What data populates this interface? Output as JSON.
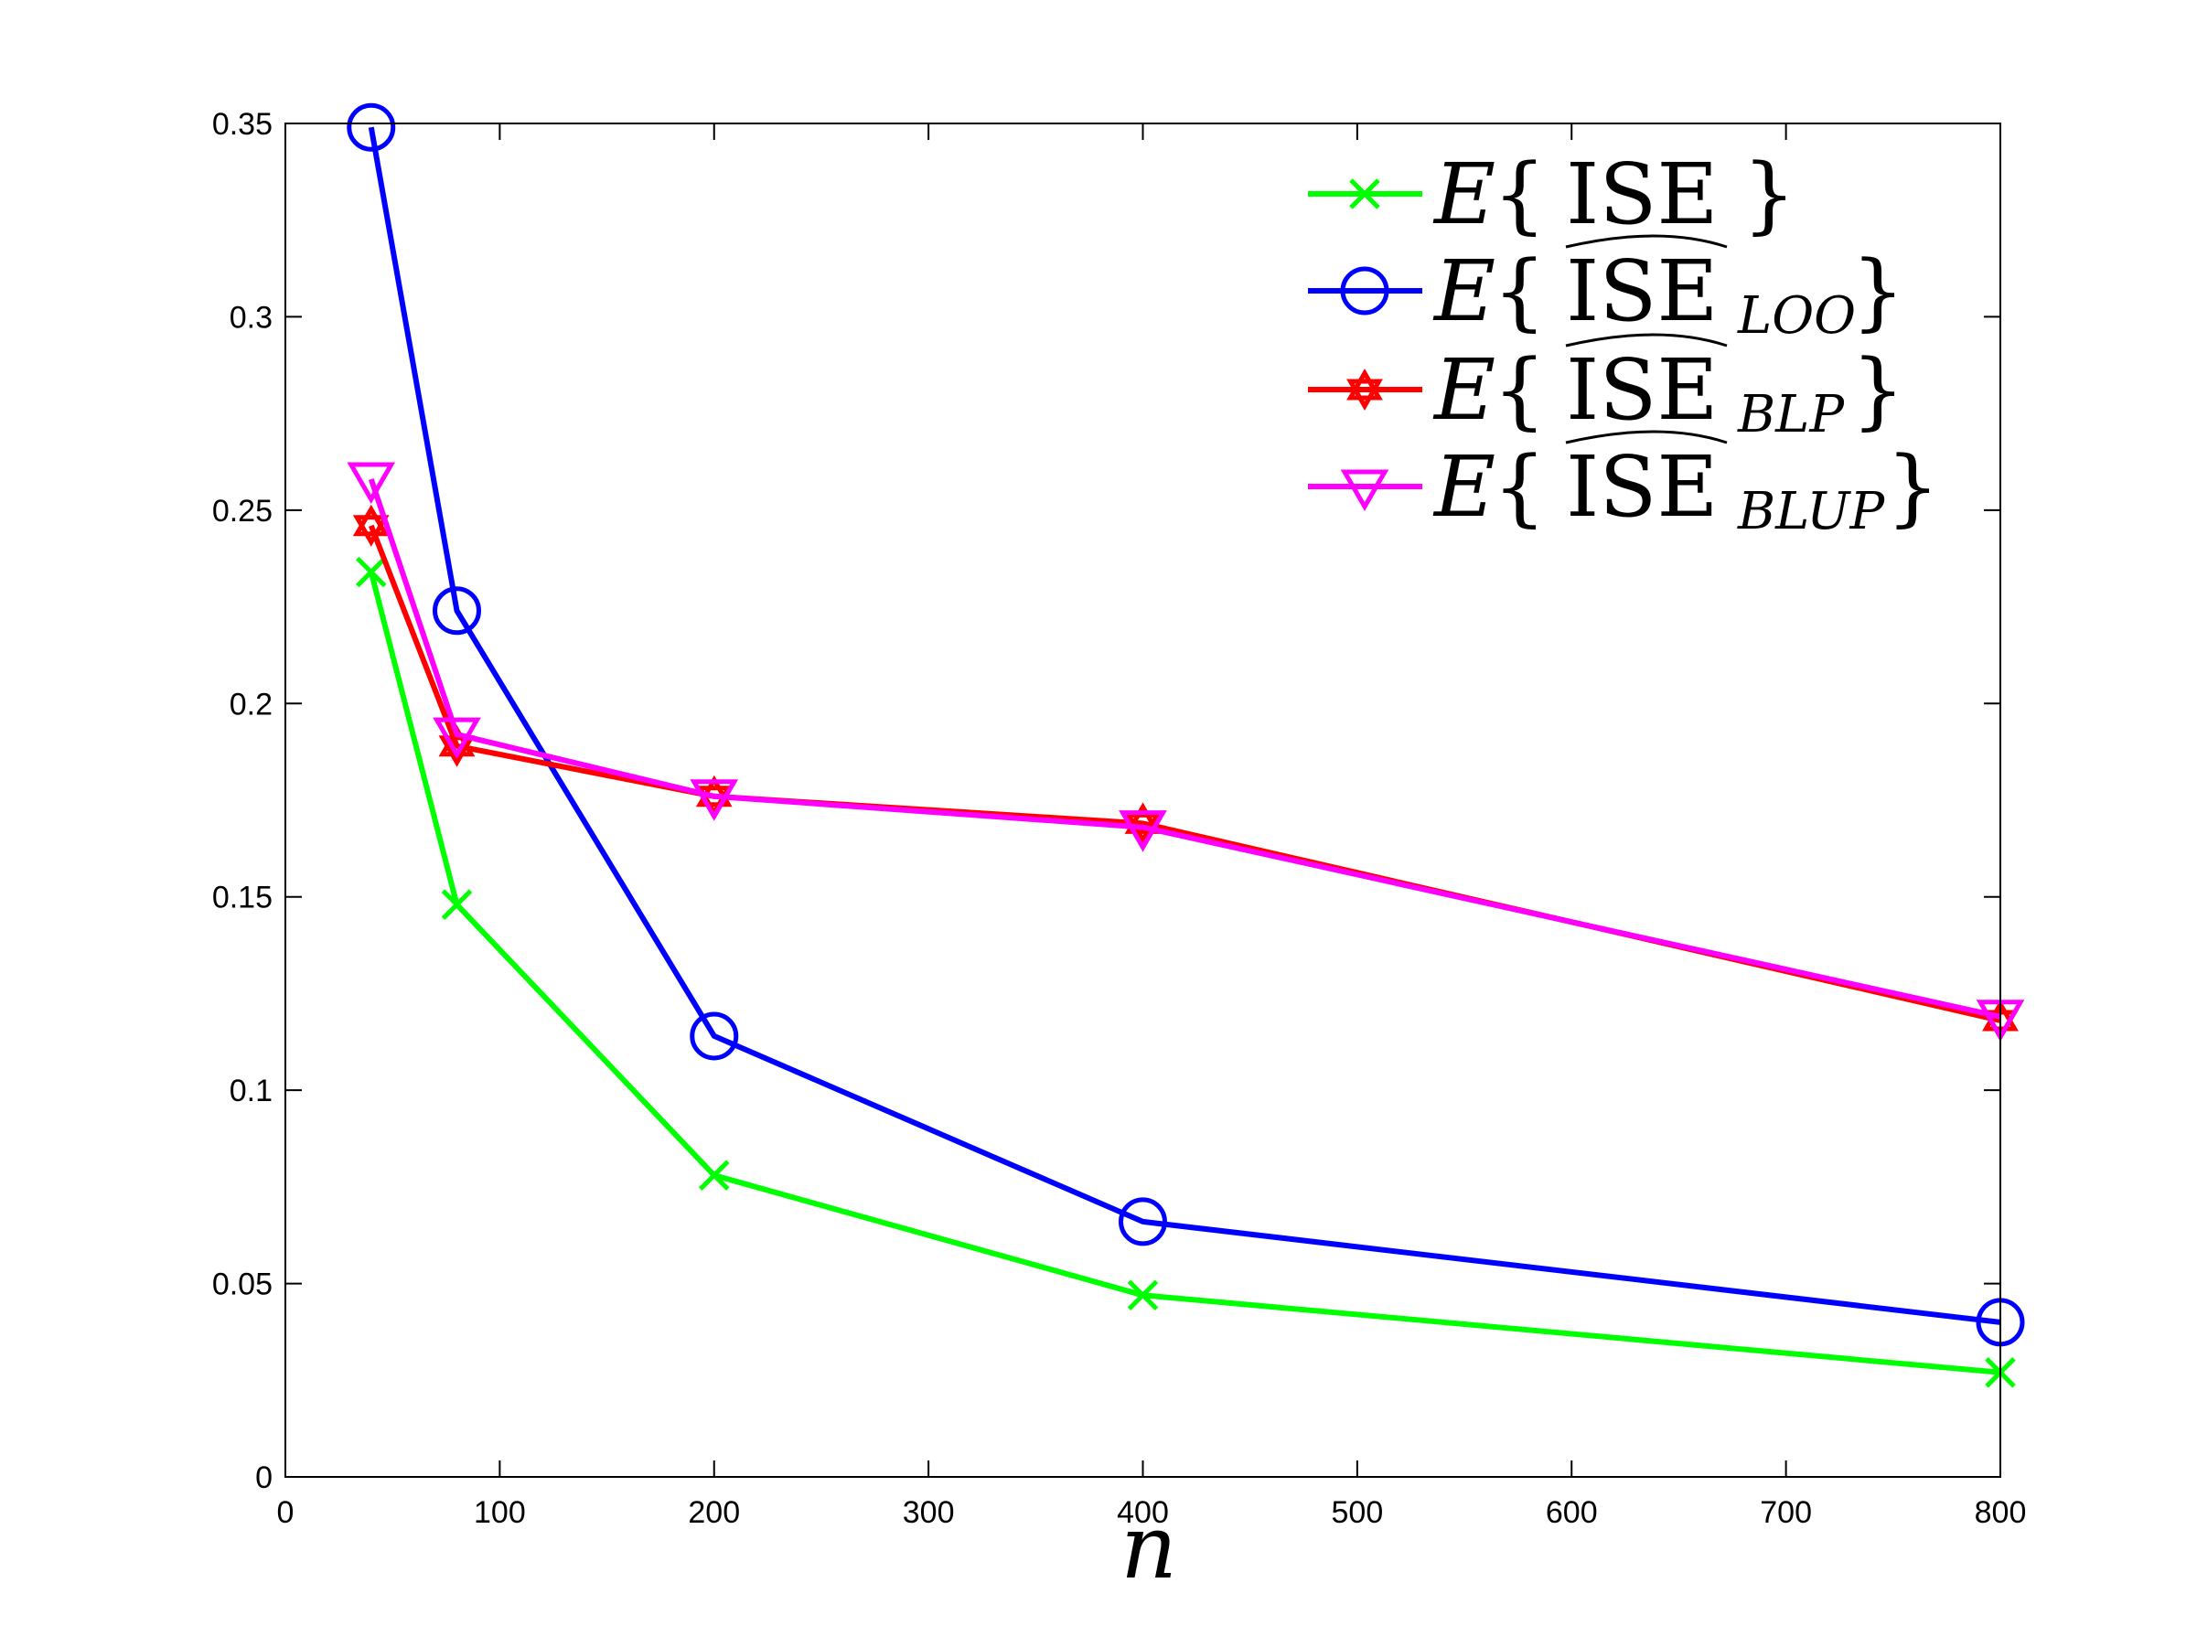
{
  "chart_data": {
    "type": "line",
    "title": "",
    "xlabel": "n",
    "ylabel": "",
    "xlim": [
      0,
      800
    ],
    "ylim": [
      0,
      0.35
    ],
    "xticks": [
      "0",
      "100",
      "200",
      "300",
      "400",
      "500",
      "600",
      "700",
      "800"
    ],
    "yticks": [
      "0",
      "0.05",
      "0.1",
      "0.15",
      "0.2",
      "0.25",
      "0.3",
      "0.35"
    ],
    "grid": false,
    "legend_position": "top-right",
    "series": [
      {
        "name": "E{ISE}",
        "legend_main": "ISE",
        "legend_sub": "",
        "hat": false,
        "color": "#00ff00",
        "marker": "x",
        "x": [
          40,
          80,
          200,
          400,
          800
        ],
        "y": [
          0.234,
          0.148,
          0.078,
          0.047,
          0.027
        ]
      },
      {
        "name": "E{ISE^LOO}",
        "legend_main": "ISE",
        "legend_sub": "LOO",
        "hat": true,
        "color": "#0000ff",
        "marker": "circle",
        "x": [
          40,
          80,
          200,
          400,
          800
        ],
        "y": [
          0.349,
          0.224,
          0.114,
          0.066,
          0.04
        ]
      },
      {
        "name": "E{ISE^BLP}",
        "legend_main": "ISE",
        "legend_sub": "BLP",
        "hat": true,
        "color": "#ff0000",
        "marker": "hexagram",
        "x": [
          40,
          80,
          200,
          400,
          800
        ],
        "y": [
          0.246,
          0.189,
          0.176,
          0.169,
          0.118
        ]
      },
      {
        "name": "E{ISE^BLUP}",
        "legend_main": "ISE",
        "legend_sub": "BLUP",
        "hat": true,
        "color": "#ff00ff",
        "marker": "triangle-down",
        "x": [
          40,
          80,
          200,
          400,
          800
        ],
        "y": [
          0.258,
          0.192,
          0.176,
          0.168,
          0.119
        ]
      }
    ]
  }
}
